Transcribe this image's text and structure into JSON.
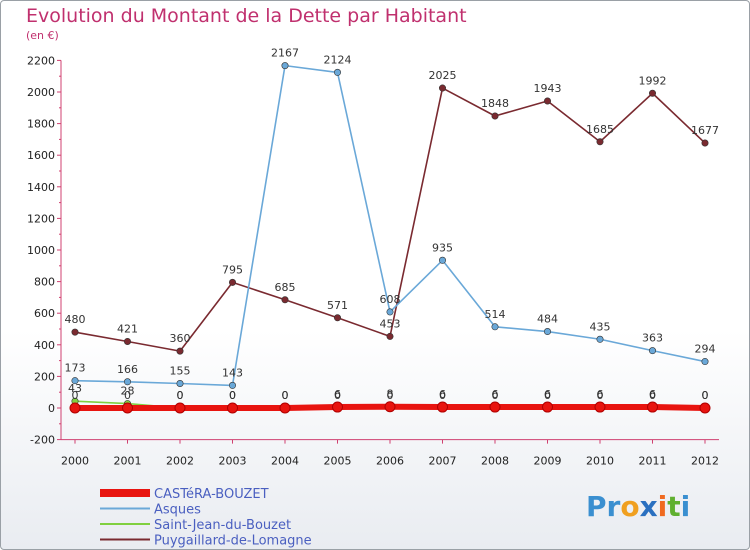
{
  "chart_data": {
    "type": "line",
    "title": "Evolution du Montant de la Dette par Habitant",
    "subtitle": "(en €)",
    "xlabel": "",
    "ylabel": "",
    "x": [
      "2000",
      "2001",
      "2002",
      "2003",
      "2004",
      "2005",
      "2006",
      "2007",
      "2008",
      "2009",
      "2010",
      "2011",
      "2012"
    ],
    "y_ticks": [
      "-200",
      "0",
      "200",
      "400",
      "600",
      "800",
      "1000",
      "1200",
      "1400",
      "1600",
      "1800",
      "2000",
      "2200"
    ],
    "ylim": [
      -200,
      2200
    ],
    "grid": false,
    "legend_position": "bottom-left",
    "series": [
      {
        "name": "CASTéRA-BOUZET",
        "color": "#e8140f",
        "values": [
          0,
          0,
          0,
          0,
          0,
          6,
          8,
          6,
          6,
          6,
          6,
          6,
          0
        ],
        "labels": [
          "0",
          "0",
          "0",
          "0",
          "0",
          "6",
          "8",
          "6",
          "6",
          "6",
          "6",
          "6",
          "0"
        ]
      },
      {
        "name": "Asques",
        "color": "#6aa8d8",
        "values": [
          173,
          166,
          155,
          143,
          2167,
          2124,
          608,
          935,
          514,
          484,
          435,
          363,
          294
        ],
        "labels": [
          "173",
          "166",
          "155",
          "143",
          "2167",
          "2124",
          "608",
          "935",
          "514",
          "484",
          "435",
          "363",
          "294"
        ]
      },
      {
        "name": "Saint-Jean-du-Bouzet",
        "color": "#80d040",
        "values": [
          43,
          28,
          0,
          0,
          0,
          0,
          0,
          0,
          0,
          0,
          0,
          0,
          0
        ],
        "labels": [
          "43",
          "28",
          "0",
          "0",
          "0",
          "0",
          "0",
          "0",
          "0",
          "0",
          "0",
          "0",
          "0"
        ]
      },
      {
        "name": "Puygaillard-de-Lomagne",
        "color": "#7a2a30",
        "values": [
          480,
          421,
          360,
          795,
          685,
          571,
          453,
          2025,
          1848,
          1943,
          1685,
          1992,
          1677
        ],
        "labels": [
          "480",
          "421",
          "360",
          "795",
          "685",
          "571",
          "453",
          "2025",
          "1848",
          "1943",
          "1685",
          "1992",
          "1677"
        ]
      }
    ]
  },
  "logo": {
    "parts": [
      "Pr",
      "o",
      "x",
      "i",
      "t",
      "i"
    ],
    "colors": [
      "#3a8fd0",
      "#f0a020",
      "#2a70c0",
      "#f06a20",
      "#60b030",
      "#3a8fd0"
    ]
  }
}
